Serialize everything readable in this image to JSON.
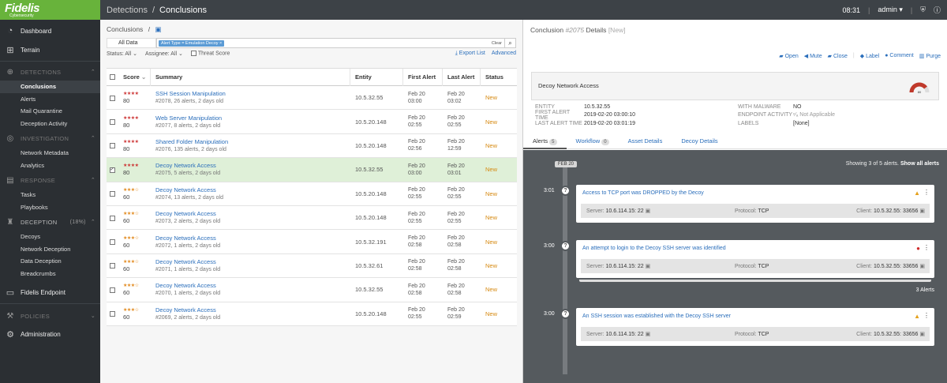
{
  "brand": {
    "name": "Fidelis",
    "sub": "Cybersecurity"
  },
  "header": {
    "crumb": "Detections",
    "sep": "/",
    "current": "Conclusions",
    "time": "08:31",
    "user": "admin",
    "sep2": "|"
  },
  "sidebar": {
    "dashboard": "Dashboard",
    "terrain": "Terrain",
    "detections": {
      "label": "DETECTIONS",
      "items": [
        "Conclusions",
        "Alerts",
        "Mail Quarantine",
        "Deception Activity"
      ]
    },
    "investigation": {
      "label": "INVESTIGATION",
      "items": [
        "Network Metadata",
        "Analytics"
      ]
    },
    "response": {
      "label": "RESPONSE",
      "items": [
        "Tasks",
        "Playbooks"
      ]
    },
    "deception": {
      "label": "DECEPTION",
      "pct": "(18%)",
      "items": [
        "Decoys",
        "Network Deception",
        "Data Deception",
        "Breadcrumbs"
      ]
    },
    "endpoint": "Fidelis Endpoint",
    "policies": "POLICIES",
    "administration": "Administration"
  },
  "left": {
    "title": "Conclusions",
    "title_sep": "/",
    "alldata": "All Data",
    "chip": "Alert Type = Emulation Decoy",
    "chip_x": "×",
    "clear": "Clear",
    "status": "Status: All",
    "assignee": "Assignee: All",
    "threat": "Threat Score",
    "export": "Export List",
    "advanced": "Advanced",
    "columns": {
      "score": "Score",
      "summary": "Summary",
      "entity": "Entity",
      "first": "First Alert",
      "last": "Last Alert",
      "status": "Status"
    },
    "rows": [
      {
        "stars": "★★★★",
        "color": "red",
        "score": "80",
        "title": "SSH Session Manipulation",
        "sub": "#2078, 26 alerts, 2 days old",
        "entity": "10.5.32.55",
        "f1": "Feb 20",
        "f2": "03:00",
        "l1": "Feb 20",
        "l2": "03:02",
        "status": "New",
        "checked": false
      },
      {
        "stars": "★★★★",
        "color": "red",
        "score": "80",
        "title": "Web Server Manipulation",
        "sub": "#2077, 8 alerts, 2 days old",
        "entity": "10.5.20.148",
        "f1": "Feb 20",
        "f2": "02:55",
        "l1": "Feb 20",
        "l2": "02:55",
        "status": "New",
        "checked": false
      },
      {
        "stars": "★★★★",
        "color": "red",
        "score": "80",
        "title": "Shared Folder Manipulation",
        "sub": "#2076, 135 alerts, 2 days old",
        "entity": "10.5.20.148",
        "f1": "Feb 20",
        "f2": "02:56",
        "l1": "Feb 20",
        "l2": "12:59",
        "status": "New",
        "checked": false
      },
      {
        "stars": "★★★★",
        "color": "red",
        "score": "80",
        "title": "Decoy Network Access",
        "sub": "#2075, 5 alerts, 2 days old",
        "entity": "10.5.32.55",
        "f1": "Feb 20",
        "f2": "03:00",
        "l1": "Feb 20",
        "l2": "03:01",
        "status": "New",
        "checked": true
      },
      {
        "stars": "★★★☆",
        "color": "amber",
        "score": "60",
        "title": "Decoy Network Access",
        "sub": "#2074, 13 alerts, 2 days old",
        "entity": "10.5.20.148",
        "f1": "Feb 20",
        "f2": "02:55",
        "l1": "Feb 20",
        "l2": "02:55",
        "status": "New",
        "checked": false
      },
      {
        "stars": "★★★☆",
        "color": "amber",
        "score": "60",
        "title": "Decoy Network Access",
        "sub": "#2073, 2 alerts, 2 days old",
        "entity": "10.5.20.148",
        "f1": "Feb 20",
        "f2": "02:55",
        "l1": "Feb 20",
        "l2": "02:55",
        "status": "New",
        "checked": false
      },
      {
        "stars": "★★★☆",
        "color": "amber",
        "score": "60",
        "title": "Decoy Network Access",
        "sub": "#2072, 1 alerts, 2 days old",
        "entity": "10.5.32.191",
        "f1": "Feb 20",
        "f2": "02:58",
        "l1": "Feb 20",
        "l2": "02:58",
        "status": "New",
        "checked": false
      },
      {
        "stars": "★★★☆",
        "color": "amber",
        "score": "60",
        "title": "Decoy Network Access",
        "sub": "#2071, 1 alerts, 2 days old",
        "entity": "10.5.32.61",
        "f1": "Feb 20",
        "f2": "02:58",
        "l1": "Feb 20",
        "l2": "02:58",
        "status": "New",
        "checked": false
      },
      {
        "stars": "★★★☆",
        "color": "amber",
        "score": "60",
        "title": "Decoy Network Access",
        "sub": "#2070, 1 alerts, 2 days old",
        "entity": "10.5.32.55",
        "f1": "Feb 20",
        "f2": "02:58",
        "l1": "Feb 20",
        "l2": "02:58",
        "status": "New",
        "checked": false
      },
      {
        "stars": "★★★☆",
        "color": "amber",
        "score": "60",
        "title": "Decoy Network Access",
        "sub": "#2069, 2 alerts, 2 days old",
        "entity": "10.5.20.148",
        "f1": "Feb 20",
        "f2": "02:55",
        "l1": "Feb 20",
        "l2": "02:59",
        "status": "New",
        "checked": false
      }
    ]
  },
  "right": {
    "title": "Conclusion",
    "id": "#2075",
    "details": "Details",
    "new": "[New]",
    "actions": [
      "Open",
      "Mute",
      "Close",
      "Label",
      "Comment",
      "Purge"
    ],
    "card_name": "Decoy Network Access",
    "gauge_value": "80",
    "info": {
      "entity_k": "ENTITY",
      "entity_v": "10.5.32.55",
      "first_k": "FIRST ALERT TIME",
      "first_v": "2019-02-20 03:00:10",
      "last_k": "LAST ALERT TIME",
      "last_v": "2019-02-20 03:01:19",
      "malware_k": "WITH MALWARE",
      "malware_v": "NO",
      "activity_k": "ENDPOINT ACTIVITY",
      "activity_v": "Not Applicable",
      "labels_k": "LABELS",
      "labels_v": "[None]"
    },
    "tabs": [
      {
        "label": "Alerts",
        "badge": "5"
      },
      {
        "label": "Workflow",
        "badge": "0"
      },
      {
        "label": "Asset Details",
        "badge": ""
      },
      {
        "label": "Decoy Details",
        "badge": ""
      }
    ],
    "timeline": {
      "date": "FEB 20",
      "showing": "Showing 3 of 5 alerts.",
      "showall": "Show all alerts",
      "three": "3 Alerts",
      "alerts": [
        {
          "time": "3:01",
          "title": "Access to TCP port was DROPPED by the Decoy",
          "sev": "warn",
          "server_k": "Server:",
          "server": "10.6.114.15: 22",
          "proto_k": "Protocol:",
          "proto": "TCP",
          "client_k": "Client:",
          "client": "10.5.32.55: 33656"
        },
        {
          "time": "3:00",
          "title": "An attempt to login to the Decoy SSH server was identified",
          "sev": "err",
          "server_k": "Server:",
          "server": "10.6.114.15: 22",
          "proto_k": "Protocol:",
          "proto": "TCP",
          "client_k": "Client:",
          "client": "10.5.32.55: 33656"
        },
        {
          "time": "3:00",
          "title": "An SSH session was established with the Decoy SSH server",
          "sev": "warn",
          "server_k": "Server:",
          "server": "10.6.114.15: 22",
          "proto_k": "Protocol:",
          "proto": "TCP",
          "client_k": "Client:",
          "client": "10.5.32.55: 33656"
        }
      ]
    }
  }
}
